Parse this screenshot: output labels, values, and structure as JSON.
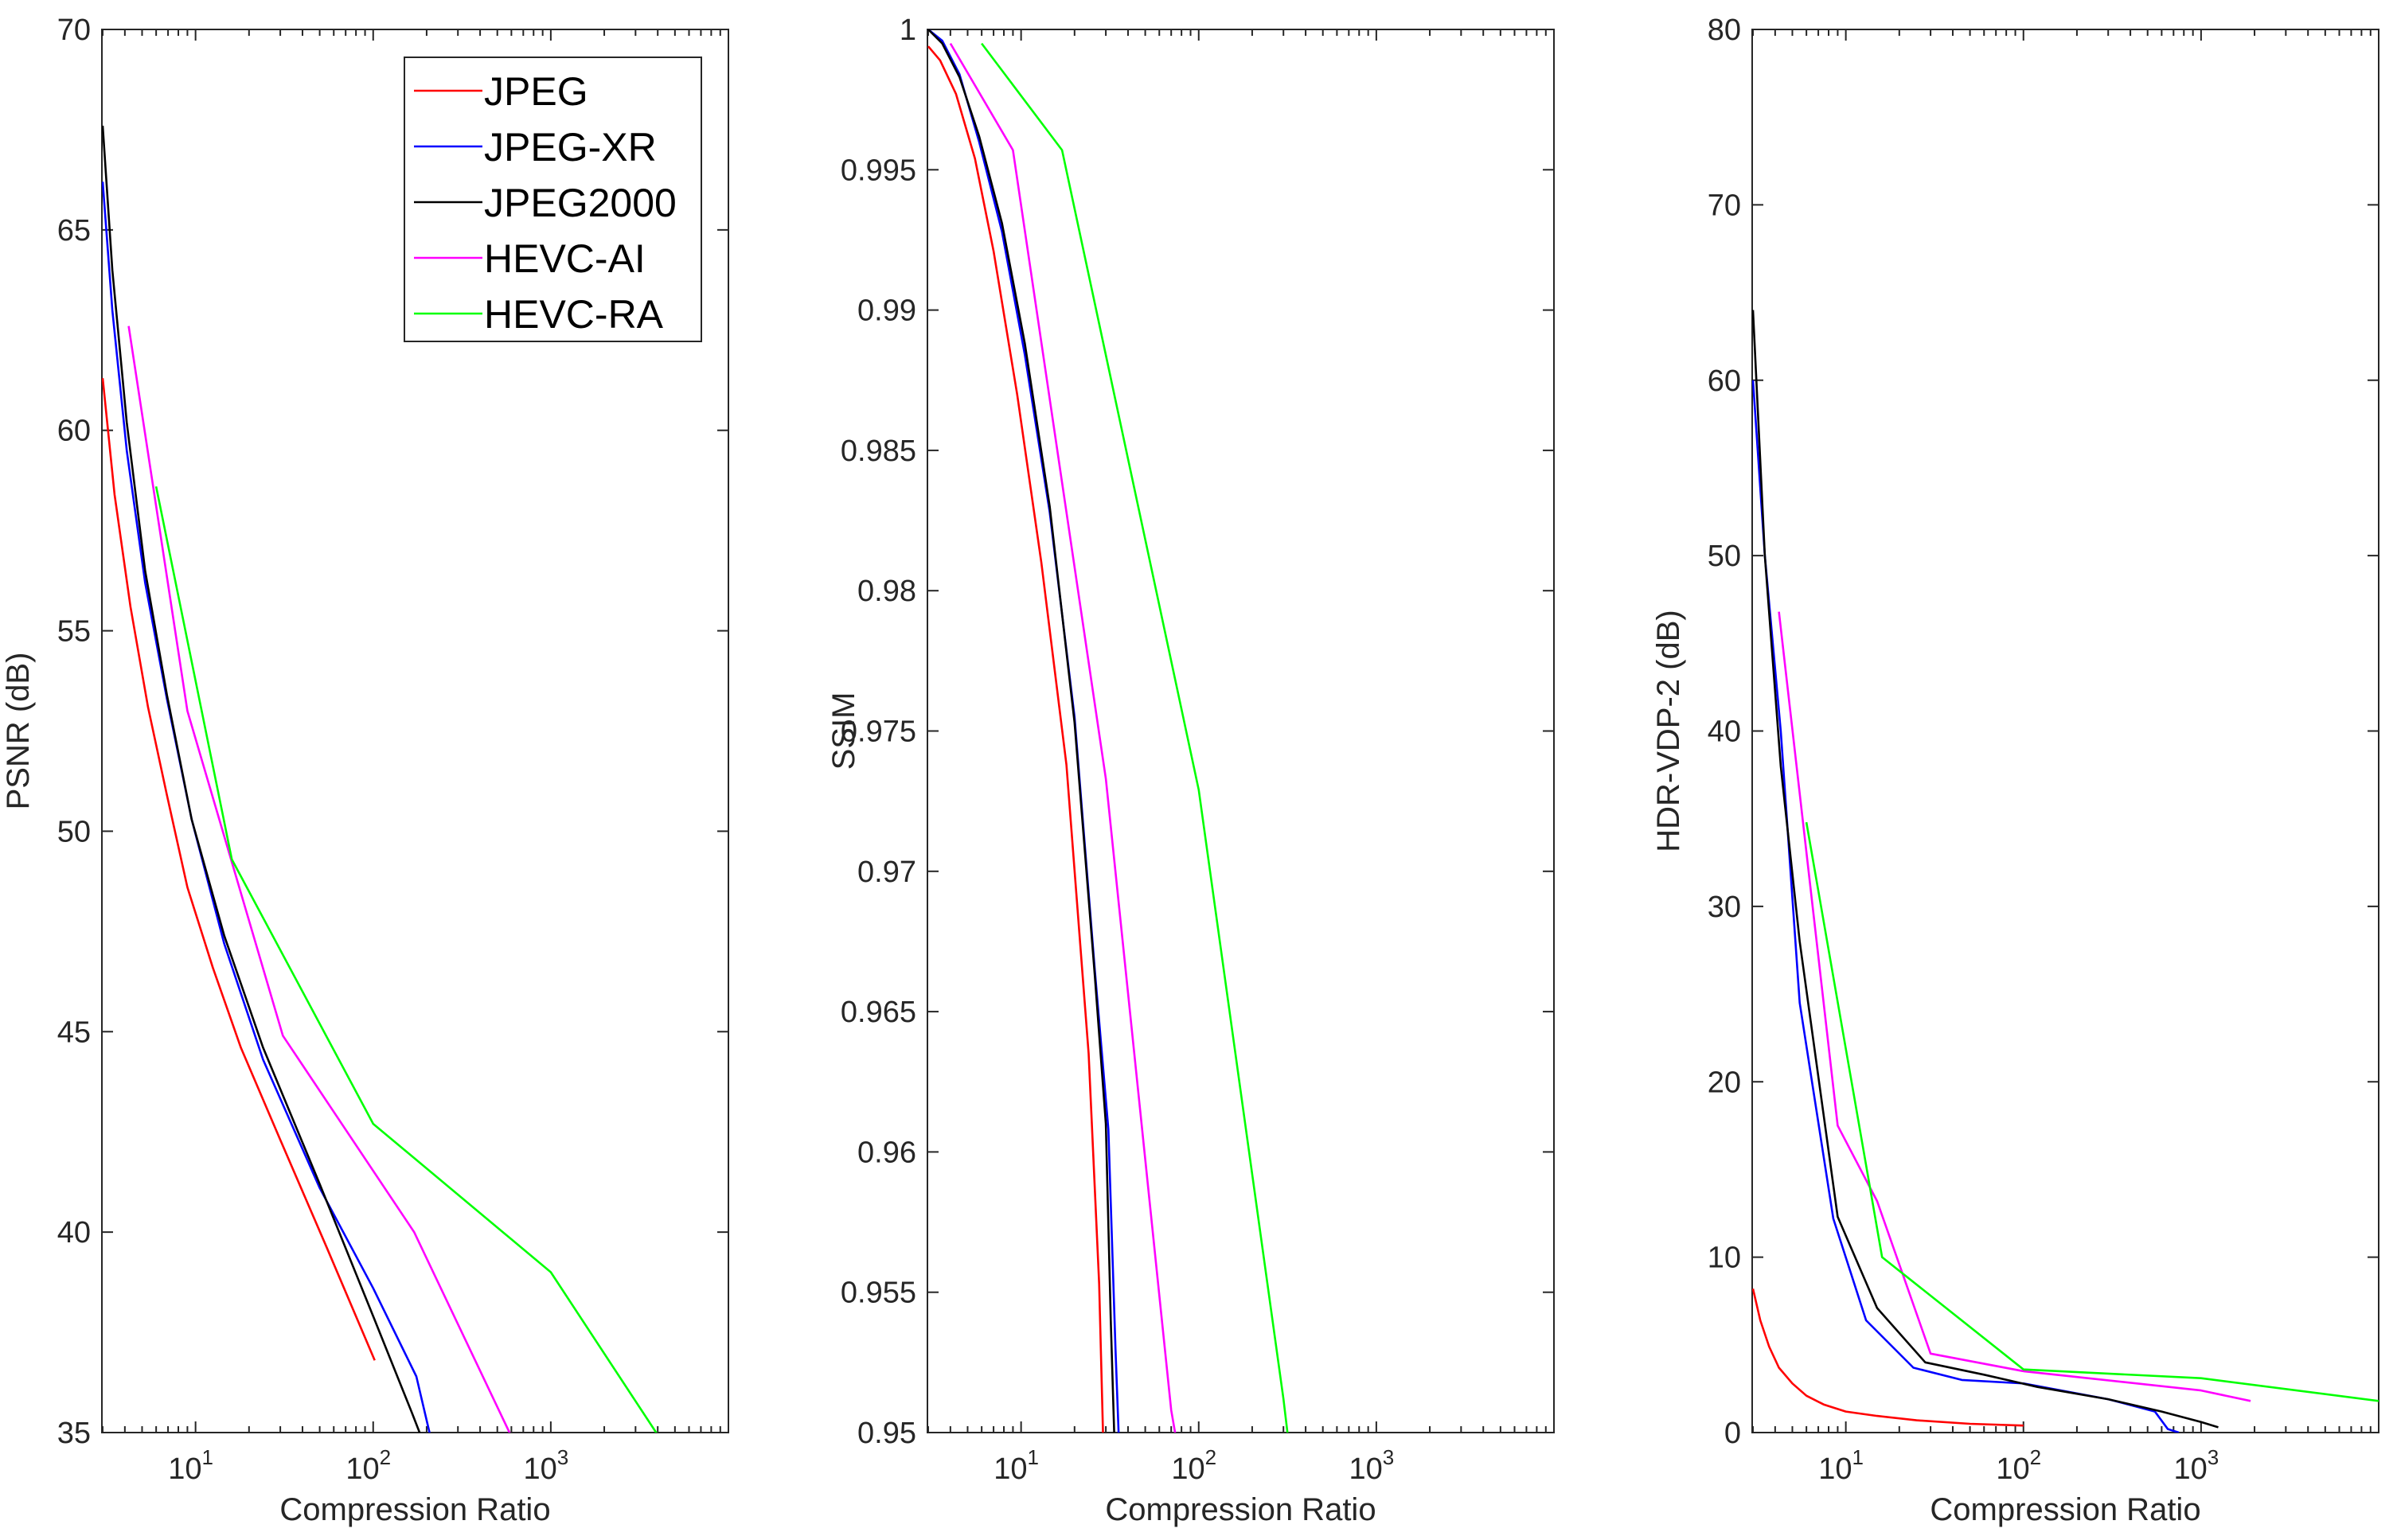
{
  "chart_data": [
    {
      "type": "line",
      "xscale": "log",
      "xlabel": "Compression Ratio",
      "ylabel": "PSNR (dB)",
      "xlim": [
        2.97,
        10000
      ],
      "ylim": [
        35,
        70
      ],
      "xticks": [
        {
          "v": 10,
          "base": "10",
          "exp": "1"
        },
        {
          "v": 100,
          "base": "10",
          "exp": "2"
        },
        {
          "v": 1000,
          "base": "10",
          "exp": "3"
        }
      ],
      "yticks": [
        {
          "v": 35,
          "label": "35"
        },
        {
          "v": 40,
          "label": "40"
        },
        {
          "v": 45,
          "label": "45"
        },
        {
          "v": 50,
          "label": "50"
        },
        {
          "v": 55,
          "label": "55"
        },
        {
          "v": 60,
          "label": "60"
        },
        {
          "v": 65,
          "label": "65"
        },
        {
          "v": 70,
          "label": "70"
        }
      ],
      "legend": {
        "location": "top-right",
        "entries": [
          "JPEG",
          "JPEG-XR",
          "JPEG2000",
          "HEVC-AI",
          "HEVC-RA"
        ]
      },
      "series": [
        {
          "name": "JPEG",
          "color": "#ff0000",
          "x": [
            3,
            3.5,
            4.3,
            5.4,
            6.9,
            9,
            12.5,
            18,
            30,
            55,
            102
          ],
          "y": [
            61.3,
            58.4,
            55.6,
            53.1,
            50.9,
            48.6,
            46.6,
            44.6,
            42.3,
            39.6,
            36.8
          ]
        },
        {
          "name": "JPEG-XR",
          "color": "#0000ff",
          "x": [
            3,
            3.4,
            4.1,
            5.2,
            6.9,
            9.5,
            14.5,
            24,
            50,
            100,
            175,
            210
          ],
          "y": [
            66.2,
            63,
            59.5,
            56.2,
            53.3,
            50.3,
            47.2,
            44.3,
            41.1,
            38.6,
            36.4,
            34.9
          ]
        },
        {
          "name": "JPEG2000",
          "color": "#000000",
          "x": [
            3,
            3.4,
            4.1,
            5.2,
            6.9,
            9.5,
            14.5,
            24,
            50,
            100,
            165,
            190
          ],
          "y": [
            67.6,
            64,
            60.2,
            56.5,
            53.4,
            50.3,
            47.4,
            44.6,
            41.2,
            37.9,
            35.5,
            34.8
          ]
        },
        {
          "name": "HEVC-AI",
          "color": "#ff00ff",
          "x": [
            4.2,
            9,
            31,
            170,
            600
          ],
          "y": [
            62.6,
            53,
            44.9,
            40,
            34.9
          ]
        },
        {
          "name": "HEVC-RA",
          "color": "#00ff00",
          "x": [
            6,
            16,
            100,
            1000,
            4200
          ],
          "y": [
            58.6,
            49.3,
            42.7,
            39,
            34.8
          ]
        }
      ]
    },
    {
      "type": "line",
      "xscale": "log",
      "xlabel": "Compression Ratio",
      "ylabel": "SSIM",
      "xlim": [
        2.97,
        10000
      ],
      "ylim": [
        0.95,
        1
      ],
      "xticks": [
        {
          "v": 10,
          "base": "10",
          "exp": "1"
        },
        {
          "v": 100,
          "base": "10",
          "exp": "2"
        },
        {
          "v": 1000,
          "base": "10",
          "exp": "3"
        }
      ],
      "yticks": [
        {
          "v": 0.95,
          "label": "0.95"
        },
        {
          "v": 0.955,
          "label": "0.955"
        },
        {
          "v": 0.96,
          "label": "0.96"
        },
        {
          "v": 0.965,
          "label": "0.965"
        },
        {
          "v": 0.97,
          "label": "0.97"
        },
        {
          "v": 0.975,
          "label": "0.975"
        },
        {
          "v": 0.98,
          "label": "0.98"
        },
        {
          "v": 0.985,
          "label": "0.985"
        },
        {
          "v": 0.99,
          "label": "0.99"
        },
        {
          "v": 0.995,
          "label": "0.995"
        },
        {
          "v": 1,
          "label": "1"
        }
      ],
      "series": [
        {
          "name": "JPEG",
          "color": "#ff0000",
          "x": [
            3,
            3.5,
            4.3,
            5.5,
            7,
            9.5,
            13,
            18,
            24,
            27.5,
            29
          ],
          "y": [
            0.9994,
            0.9989,
            0.9977,
            0.9954,
            0.9921,
            0.987,
            0.981,
            0.9738,
            0.9635,
            0.9553,
            0.9497
          ]
        },
        {
          "name": "JPEG-XR",
          "color": "#0000ff",
          "x": [
            3,
            3.6,
            4.5,
            5.8,
            7.8,
            10.5,
            14.5,
            20,
            26,
            31,
            34,
            35.5
          ],
          "y": [
            1,
            0.9996,
            0.9984,
            0.996,
            0.9928,
            0.9884,
            0.9828,
            0.9755,
            0.9665,
            0.9608,
            0.953,
            0.9498
          ]
        },
        {
          "name": "JPEG2000",
          "color": "#000000",
          "x": [
            3,
            3.6,
            4.5,
            5.8,
            7.8,
            10.5,
            14.5,
            20,
            26,
            30,
            32,
            33.5
          ],
          "y": [
            1,
            0.9995,
            0.9983,
            0.9962,
            0.9931,
            0.9888,
            0.983,
            0.9753,
            0.9663,
            0.961,
            0.954,
            0.9498
          ]
        },
        {
          "name": "HEVC-AI",
          "color": "#ff00ff",
          "x": [
            4,
            9,
            30,
            70,
            75
          ],
          "y": [
            0.9995,
            0.9957,
            0.9733,
            0.9508,
            0.9497
          ]
        },
        {
          "name": "HEVC-RA",
          "color": "#00ff00",
          "x": [
            6,
            17,
            100,
            300,
            320
          ],
          "y": [
            0.9995,
            0.9957,
            0.9729,
            0.9512,
            0.9497
          ]
        }
      ]
    },
    {
      "type": "line",
      "xscale": "log",
      "xlabel": "Compression Ratio",
      "ylabel": "HDR-VDP-2 (dB)",
      "xlim": [
        2.97,
        10000
      ],
      "ylim": [
        0,
        80
      ],
      "xticks": [
        {
          "v": 10,
          "base": "10",
          "exp": "1"
        },
        {
          "v": 100,
          "base": "10",
          "exp": "2"
        },
        {
          "v": 1000,
          "base": "10",
          "exp": "3"
        }
      ],
      "yticks": [
        {
          "v": 0,
          "label": "0"
        },
        {
          "v": 10,
          "label": "10"
        },
        {
          "v": 20,
          "label": "20"
        },
        {
          "v": 30,
          "label": "30"
        },
        {
          "v": 40,
          "label": "40"
        },
        {
          "v": 50,
          "label": "50"
        },
        {
          "v": 60,
          "label": "60"
        },
        {
          "v": 70,
          "label": "70"
        },
        {
          "v": 80,
          "label": "80"
        }
      ],
      "series": [
        {
          "name": "JPEG",
          "color": "#ff0000",
          "x": [
            3,
            3.3,
            3.7,
            4.2,
            5,
            6,
            7.5,
            10,
            15,
            25,
            50,
            100
          ],
          "y": [
            8.2,
            6.4,
            4.9,
            3.7,
            2.8,
            2.1,
            1.6,
            1.2,
            0.95,
            0.7,
            0.5,
            0.4
          ]
        },
        {
          "name": "JPEG-XR",
          "color": "#0000ff",
          "x": [
            3,
            3.5,
            4.3,
            5.5,
            8.5,
            13,
            24,
            45,
            100,
            300,
            550,
            650,
            750
          ],
          "y": [
            60,
            50,
            40,
            24.5,
            12.2,
            6.4,
            3.7,
            3,
            2.8,
            1.9,
            1.2,
            0.2,
            0
          ]
        },
        {
          "name": "JPEG2000",
          "color": "#000000",
          "x": [
            3,
            3.5,
            4.3,
            5.5,
            9,
            15,
            28,
            60,
            120,
            300,
            600,
            1000,
            1250
          ],
          "y": [
            64,
            50,
            38,
            28,
            12.3,
            7.1,
            4,
            3.3,
            2.6,
            1.9,
            1.2,
            0.6,
            0.3
          ]
        },
        {
          "name": "HEVC-AI",
          "color": "#ff00ff",
          "x": [
            4.2,
            9,
            15,
            30,
            100,
            1000,
            1900
          ],
          "y": [
            46.8,
            17.5,
            13.2,
            4.5,
            3.5,
            2.4,
            1.8
          ]
        },
        {
          "name": "HEVC-RA",
          "color": "#00ff00",
          "x": [
            6,
            16,
            100,
            1000,
            10000
          ],
          "y": [
            34.8,
            10,
            3.6,
            3.1,
            1.8
          ]
        }
      ]
    }
  ]
}
